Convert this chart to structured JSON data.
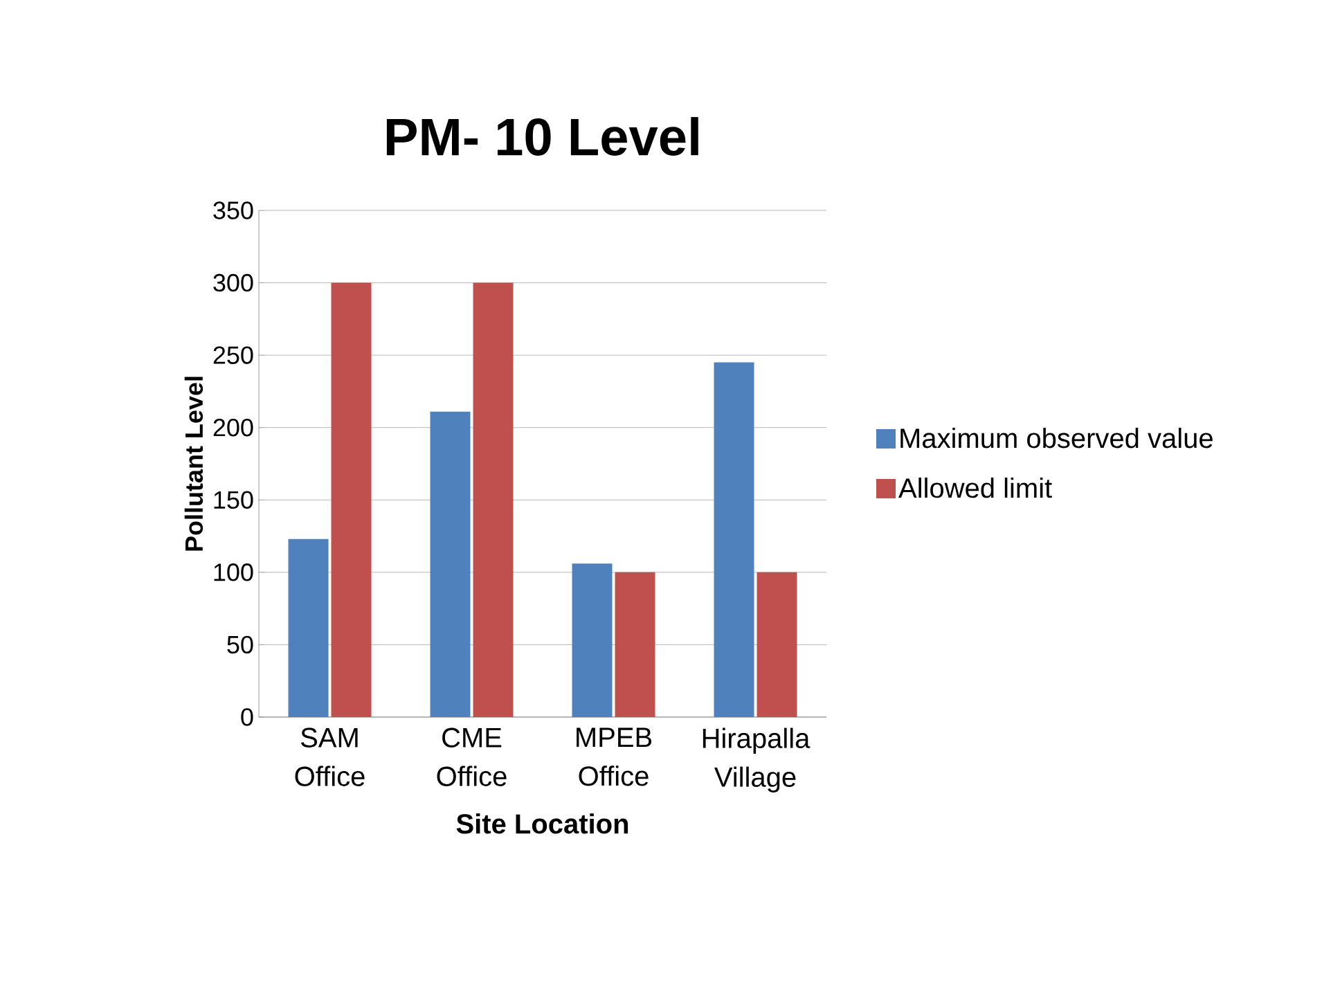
{
  "chart_data": {
    "type": "bar",
    "title": "PM- 10 Level",
    "xlabel": "Site Location",
    "ylabel": "Pollutant Level",
    "categories": [
      "SAM Office",
      "CME Office",
      "MPEB Office",
      "Hirapalla Village"
    ],
    "series": [
      {
        "name": "Maximum observed value",
        "color": "#4f81bd",
        "values": [
          123,
          211,
          106,
          245
        ]
      },
      {
        "name": "Allowed limit",
        "color": "#c0504d",
        "values": [
          300,
          300,
          100,
          100
        ]
      }
    ],
    "ylim": [
      0,
      350
    ],
    "yticks": [
      0,
      50,
      100,
      150,
      200,
      250,
      300,
      350
    ],
    "grid": "y",
    "legend": "right"
  }
}
